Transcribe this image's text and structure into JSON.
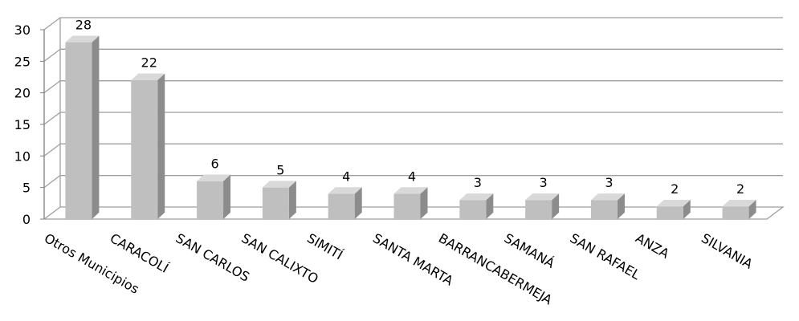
{
  "chart_data": {
    "type": "bar",
    "style": "3d-clustered-column",
    "categories": [
      "Otros Municipios",
      "CARACOLÍ",
      "SAN CARLOS",
      "SAN CALIXTO",
      "SIMITÍ",
      "SANTA MARTA",
      "BARRANCABERMEJA",
      "SAMANÁ",
      "SAN RAFAEL",
      "ANZA",
      "SILVANIA"
    ],
    "values": [
      28,
      22,
      6,
      5,
      4,
      4,
      3,
      3,
      3,
      2,
      2
    ],
    "data_labels": [
      "28",
      "22",
      "6",
      "5",
      "4",
      "4",
      "3",
      "3",
      "3",
      "2",
      "2"
    ],
    "title": "",
    "xlabel": "",
    "ylabel": "",
    "ylim": [
      0,
      30
    ],
    "yticks": [
      "0",
      "5",
      "10",
      "15",
      "20",
      "25",
      "30"
    ],
    "grid": true,
    "legend": "none",
    "colors": {
      "bar_front": "#bfbfbf",
      "bar_top": "#d9d9d9",
      "bar_side": "#8c8c8c",
      "gridline": "#9e9e9e",
      "axis": "#7f7f7f"
    }
  }
}
